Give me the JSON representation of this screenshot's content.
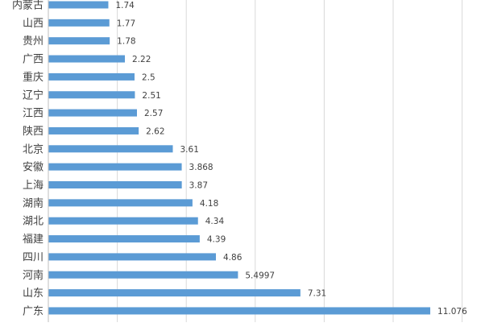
{
  "colors": {
    "bar": "#5b9bd5",
    "grid": "#d9d9d9",
    "axis": "#bfbfbf",
    "label": "#404040"
  },
  "chart_data": {
    "type": "bar",
    "orientation": "horizontal",
    "categories": [
      "内蒙古",
      "山西",
      "贵州",
      "广西",
      "重庆",
      "辽宁",
      "江西",
      "陕西",
      "北京",
      "安徽",
      "上海",
      "湖南",
      "湖北",
      "福建",
      "四川",
      "河南",
      "山东",
      "广东"
    ],
    "values": [
      1.74,
      1.77,
      1.78,
      2.22,
      2.5,
      2.51,
      2.57,
      2.62,
      3.61,
      3.868,
      3.87,
      4.18,
      4.34,
      4.39,
      4.86,
      5.4997,
      7.31,
      11.076
    ],
    "value_labels": [
      "1.74",
      "1.77",
      "1.78",
      "2.22",
      "2.5",
      "2.51",
      "2.57",
      "2.62",
      "3.61",
      "3.868",
      "3.87",
      "4.18",
      "4.34",
      "4.39",
      "4.86",
      "5.4997",
      "7.31",
      "11.076"
    ],
    "xlim": [
      0,
      12
    ],
    "grid": true,
    "legend": "none"
  }
}
